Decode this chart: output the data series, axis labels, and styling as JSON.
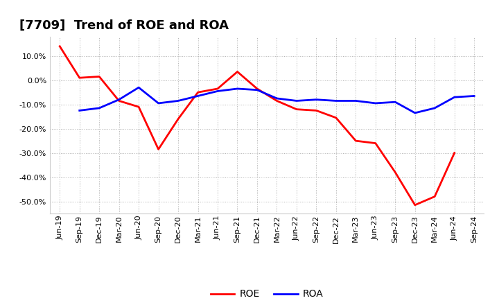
{
  "title": "[7709]  Trend of ROE and ROA",
  "background_color": "#ffffff",
  "plot_bg_color": "#ffffff",
  "grid_color": "#aaaaaa",
  "x_labels": [
    "Jun-19",
    "Sep-19",
    "Dec-19",
    "Mar-20",
    "Jun-20",
    "Sep-20",
    "Dec-20",
    "Mar-21",
    "Jun-21",
    "Sep-21",
    "Dec-21",
    "Mar-22",
    "Jun-22",
    "Sep-22",
    "Dec-22",
    "Mar-23",
    "Jun-23",
    "Sep-23",
    "Dec-23",
    "Mar-24",
    "Jun-24",
    "Sep-24"
  ],
  "roe": [
    14.0,
    1.0,
    1.5,
    -8.5,
    -11.0,
    -28.5,
    -16.0,
    -5.0,
    -3.5,
    3.5,
    -3.5,
    -8.5,
    -12.0,
    -12.5,
    -15.5,
    -25.0,
    -26.0,
    -38.0,
    -51.5,
    -48.0,
    -30.0,
    null
  ],
  "roa": [
    null,
    -12.5,
    -11.5,
    -8.0,
    -3.0,
    -9.5,
    -8.5,
    -6.5,
    -4.5,
    -3.5,
    -4.0,
    -7.5,
    -8.5,
    -8.0,
    -8.5,
    -8.5,
    -9.5,
    -9.0,
    -13.5,
    -11.5,
    -7.0,
    -6.5
  ],
  "roe_color": "#ff0000",
  "roa_color": "#0000ff",
  "line_width": 2.0,
  "ylim": [
    -55,
    18
  ],
  "yticks": [
    10.0,
    0.0,
    -10.0,
    -20.0,
    -30.0,
    -40.0,
    -50.0
  ],
  "title_fontsize": 13,
  "tick_fontsize": 8,
  "legend_fontsize": 10
}
